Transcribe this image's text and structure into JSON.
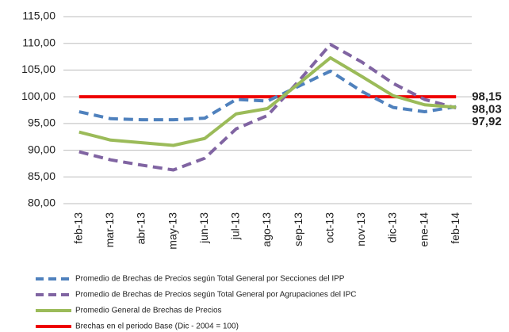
{
  "chart_data": {
    "type": "line",
    "categories": [
      "feb-13",
      "mar-13",
      "abr-13",
      "may-13",
      "jun-13",
      "jul-13",
      "ago-13",
      "sep-13",
      "oct-13",
      "nov-13",
      "dic-13",
      "ene-14",
      "feb-14"
    ],
    "series": [
      {
        "name": "Promedio de Brechas de Precios según Total General por Secciones del IPP",
        "color": "#4f81bd",
        "style": "dashed",
        "values": [
          97.2,
          95.9,
          95.7,
          95.7,
          96.0,
          99.5,
          99.2,
          102.0,
          104.8,
          101.0,
          98.0,
          97.2,
          98.15
        ],
        "value_labels": [
          null,
          null,
          null,
          null,
          null,
          null,
          null,
          null,
          null,
          null,
          null,
          null,
          "98,15"
        ]
      },
      {
        "name": "Promedio de Brechas de Precios según Total General por Agrupaciones del IPC",
        "color": "#8064a2",
        "style": "dashed",
        "values": [
          89.7,
          88.2,
          87.2,
          86.3,
          88.5,
          94.0,
          96.5,
          103.0,
          109.8,
          106.5,
          102.5,
          99.5,
          97.92
        ],
        "value_labels": [
          null,
          null,
          null,
          null,
          null,
          null,
          null,
          null,
          null,
          null,
          null,
          null,
          "97,92"
        ]
      },
      {
        "name": "Promedio General de Brechas de Precios",
        "color": "#9bbb59",
        "style": "solid",
        "values": [
          93.4,
          91.9,
          91.4,
          90.9,
          92.2,
          96.8,
          97.8,
          102.5,
          107.3,
          103.8,
          100.2,
          98.5,
          98.03
        ],
        "value_labels": [
          null,
          null,
          null,
          null,
          null,
          null,
          null,
          null,
          null,
          null,
          null,
          null,
          "98,03"
        ]
      },
      {
        "name": "Brechas en el periodo Base (Dic - 2004 = 100)",
        "color": "#ee0000",
        "style": "solid",
        "values": [
          100,
          100,
          100,
          100,
          100,
          100,
          100,
          100,
          100,
          100,
          100,
          100,
          100
        ]
      }
    ],
    "ylim": [
      80,
      115
    ],
    "yticks": [
      {
        "value": 80,
        "label": "80,00"
      },
      {
        "value": 85,
        "label": "85,00"
      },
      {
        "value": 90,
        "label": "90,00"
      },
      {
        "value": 95,
        "label": "95,00"
      },
      {
        "value": 100,
        "label": "100,00"
      },
      {
        "value": 105,
        "label": "105,00"
      },
      {
        "value": 110,
        "label": "110,00"
      },
      {
        "value": 115,
        "label": "115,00"
      }
    ],
    "grid": true
  }
}
